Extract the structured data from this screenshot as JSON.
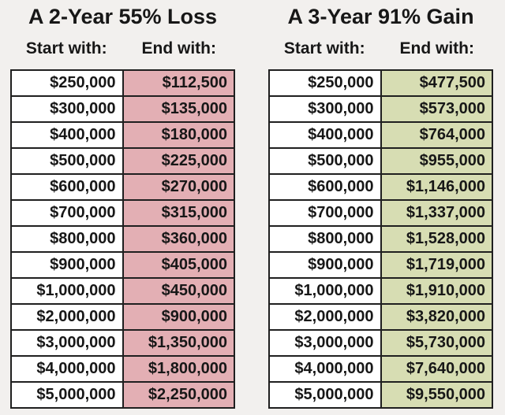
{
  "page": {
    "background": "#f2f0ee",
    "text_color": "#171717",
    "border_color": "#1f1f1f"
  },
  "chart_data": [
    {
      "type": "table",
      "title": "A 2-Year 55% Loss",
      "columns": [
        "Start with:",
        "End with:"
      ],
      "start_column_color": "#ffffff",
      "end_column_color": "#e3afb4",
      "rows": [
        [
          "$250,000",
          "$112,500"
        ],
        [
          "$300,000",
          "$135,000"
        ],
        [
          "$400,000",
          "$180,000"
        ],
        [
          "$500,000",
          "$225,000"
        ],
        [
          "$600,000",
          "$270,000"
        ],
        [
          "$700,000",
          "$315,000"
        ],
        [
          "$800,000",
          "$360,000"
        ],
        [
          "$900,000",
          "$405,000"
        ],
        [
          "$1,000,000",
          "$450,000"
        ],
        [
          "$2,000,000",
          "$900,000"
        ],
        [
          "$3,000,000",
          "$1,350,000"
        ],
        [
          "$4,000,000",
          "$1,800,000"
        ],
        [
          "$5,000,000",
          "$2,250,000"
        ]
      ]
    },
    {
      "type": "table",
      "title": "A 3-Year 91% Gain",
      "columns": [
        "Start with:",
        "End with:"
      ],
      "start_column_color": "#ffffff",
      "end_column_color": "#d7ddb3",
      "rows": [
        [
          "$250,000",
          "$477,500"
        ],
        [
          "$300,000",
          "$573,000"
        ],
        [
          "$400,000",
          "$764,000"
        ],
        [
          "$500,000",
          "$955,000"
        ],
        [
          "$600,000",
          "$1,146,000"
        ],
        [
          "$700,000",
          "$1,337,000"
        ],
        [
          "$800,000",
          "$1,528,000"
        ],
        [
          "$900,000",
          "$1,719,000"
        ],
        [
          "$1,000,000",
          "$1,910,000"
        ],
        [
          "$2,000,000",
          "$3,820,000"
        ],
        [
          "$3,000,000",
          "$5,730,000"
        ],
        [
          "$4,000,000",
          "$7,640,000"
        ],
        [
          "$5,000,000",
          "$9,550,000"
        ]
      ]
    }
  ]
}
